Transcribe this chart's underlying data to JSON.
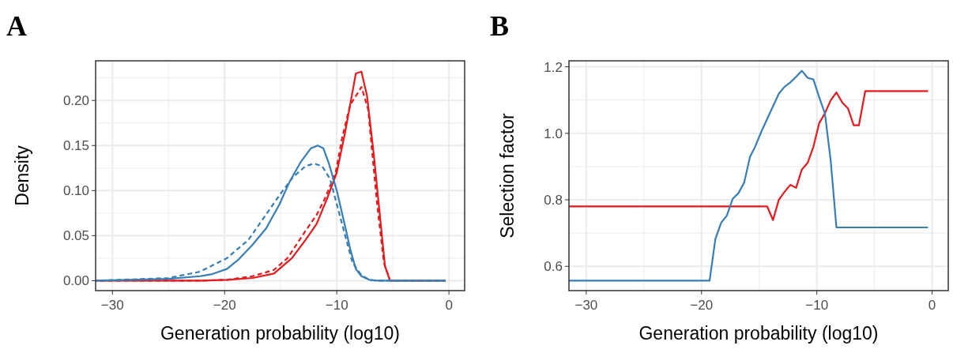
{
  "chart_data": [
    {
      "type": "line",
      "title": "A",
      "xlabel": "Generation probability (log10)",
      "ylabel": "Density",
      "xlim": [
        -31.5,
        1.4
      ],
      "ylim": [
        -0.011,
        0.244
      ],
      "xticks": [
        {
          "value": -30,
          "label": "−30"
        },
        {
          "value": -20,
          "label": "−20"
        },
        {
          "value": -10,
          "label": "−10"
        },
        0
      ],
      "yticks": [
        {
          "value": 0,
          "label": "0.00"
        },
        0.05,
        {
          "value": 0.1,
          "label": "0.10"
        },
        0.15,
        {
          "value": 0.2,
          "label": "0.20"
        }
      ],
      "grid": true,
      "series": [
        {
          "color": "#e41a1c",
          "line_style": "solid",
          "x": [
            -31.5,
            -25,
            -22.2,
            -19.8,
            -17.5,
            -15.6,
            -14,
            -12.8,
            -11.8,
            -10.9,
            -10,
            -9.25,
            -8.3,
            -7.8,
            -7.3,
            -6.7,
            -6.3,
            -5.7,
            -5.25,
            -0.3
          ],
          "values": [
            0,
            0,
            0,
            0.001,
            0.003,
            0.008,
            0.025,
            0.045,
            0.063,
            0.09,
            0.12,
            0.165,
            0.23,
            0.232,
            0.205,
            0.14,
            0.09,
            0.016,
            0,
            0
          ]
        },
        {
          "color": "#e41a1c",
          "line_style": "dashed",
          "x": [
            -31.5,
            -25,
            -22.2,
            -19.8,
            -17.5,
            -15.6,
            -14.4,
            -12.8,
            -11.8,
            -11.1,
            -10.1,
            -9.5,
            -8.8,
            -7.8,
            -7.2,
            -6.9,
            -6.4,
            -5.8,
            -5.25
          ],
          "values": [
            0,
            0,
            0,
            0.001,
            0.005,
            0.012,
            0.025,
            0.055,
            0.073,
            0.09,
            0.12,
            0.16,
            0.195,
            0.215,
            0.19,
            0.15,
            0.085,
            0.02,
            0
          ]
        },
        {
          "color": "#377eb8",
          "line_style": "solid",
          "x": [
            -31.5,
            -25,
            -22.2,
            -21.2,
            -19.8,
            -18.8,
            -17.5,
            -16.3,
            -15.1,
            -14.2,
            -13.2,
            -12.3,
            -11.7,
            -11.2,
            -10.7,
            -10,
            -9.25,
            -8.8,
            -8.3,
            -7.8,
            -7.1,
            -6.4,
            -0.3
          ],
          "values": [
            0,
            0.002,
            0.005,
            0.007,
            0.013,
            0.023,
            0.04,
            0.058,
            0.085,
            0.11,
            0.132,
            0.147,
            0.15,
            0.147,
            0.13,
            0.1,
            0.06,
            0.035,
            0.013,
            0.005,
            0.001,
            0,
            0
          ]
        },
        {
          "color": "#377eb8",
          "line_style": "dashed",
          "x": [
            -31.5,
            -25,
            -22.2,
            -19.8,
            -17.9,
            -16.5,
            -15.1,
            -13.9,
            -12.8,
            -12,
            -11.3,
            -10.6,
            -10,
            -9.25,
            -8.6,
            -7.8,
            -7.1,
            -6.4,
            -0.3
          ],
          "values": [
            0,
            0.003,
            0.01,
            0.025,
            0.045,
            0.07,
            0.095,
            0.115,
            0.127,
            0.13,
            0.127,
            0.113,
            0.085,
            0.05,
            0.02,
            0.006,
            0.001,
            0,
            0
          ]
        }
      ]
    },
    {
      "type": "line",
      "title": "B",
      "xlabel": "Generation probability (log10)",
      "ylabel": "Selection factor",
      "xlim": [
        -31.5,
        1.4
      ],
      "ylim": [
        0.527,
        1.218
      ],
      "xticks": [
        {
          "value": -30,
          "label": "−30"
        },
        {
          "value": -20,
          "label": "−20"
        },
        {
          "value": -10,
          "label": "−10"
        },
        0
      ],
      "yticks": [
        0.6,
        0.8,
        {
          "value": 1,
          "label": "1.0"
        },
        1.2
      ],
      "grid": true,
      "series": [
        {
          "color": "#e41a1c",
          "line_style": "solid",
          "x": [
            -31.5,
            -14.3,
            -13.8,
            -13.3,
            -12.8,
            -12.3,
            -11.8,
            -11.3,
            -10.8,
            -10.3,
            -9.8,
            -9.3,
            -8.8,
            -8.3,
            -7.8,
            -7.3,
            -6.8,
            -6.35,
            -5.8,
            -0.35
          ],
          "values": [
            0.78,
            0.78,
            0.739,
            0.8,
            0.824,
            0.845,
            0.836,
            0.891,
            0.911,
            0.959,
            1.03,
            1.06,
            1.099,
            1.123,
            1.093,
            1.075,
            1.024,
            1.024,
            1.127,
            1.127
          ]
        },
        {
          "color": "#377eb8",
          "line_style": "solid",
          "x": [
            -31.5,
            -19.3,
            -18.8,
            -18.3,
            -17.8,
            -17.3,
            -16.8,
            -16.3,
            -15.8,
            -15.35,
            -14.8,
            -13.3,
            -12.8,
            -12.3,
            -11.8,
            -11.3,
            -10.8,
            -10.3,
            -9.8,
            -9.3,
            -8.8,
            -8.3,
            -0.35
          ],
          "values": [
            0.557,
            0.557,
            0.682,
            0.731,
            0.753,
            0.803,
            0.82,
            0.852,
            0.929,
            0.96,
            1.006,
            1.119,
            1.14,
            1.153,
            1.17,
            1.188,
            1.167,
            1.162,
            1.109,
            1.06,
            0.919,
            0.717,
            0.717
          ]
        }
      ]
    }
  ]
}
